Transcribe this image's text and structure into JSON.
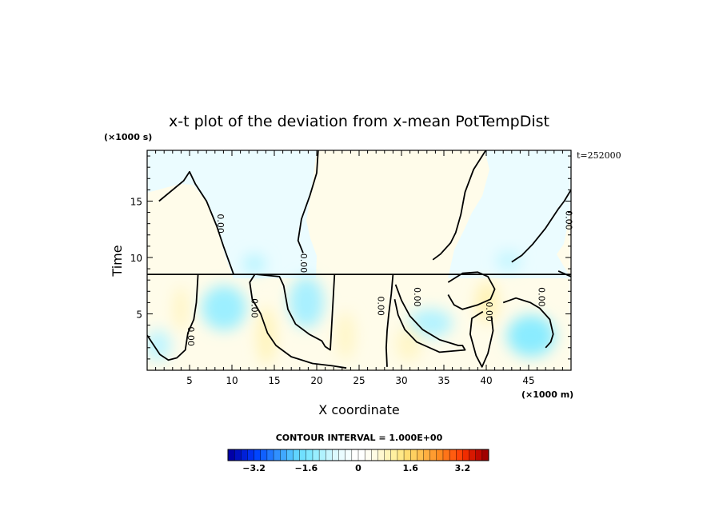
{
  "chart_data": {
    "type": "heatmap",
    "title": "x-t plot of the deviation from x-mean PotTempDist",
    "xlabel": "X coordinate",
    "ylabel": "Time",
    "x_unit": "(×1000 m)",
    "y_unit": "(×1000 s)",
    "time_stamp": "t=252000",
    "xlim": [
      0,
      50
    ],
    "ylim": [
      0,
      19.5
    ],
    "x_ticks": [
      5,
      10,
      15,
      20,
      25,
      30,
      35,
      40,
      45
    ],
    "y_ticks": [
      5,
      10,
      15
    ],
    "contour_interval_text": "CONTOUR INTERVAL = 1.000E+00",
    "contour_label": "0.00",
    "colorbar": {
      "min": -4,
      "max": 4,
      "step": 0.2,
      "tick_values": [
        -3.2,
        -1.6,
        0,
        1.6,
        3.2
      ],
      "tick_labels": [
        "−3.2",
        "−1.6",
        "0",
        "1.6",
        "3.2"
      ],
      "colors_negative": [
        "#0000a8",
        "#0010c0",
        "#0020d8",
        "#0030ee",
        "#0045ff",
        "#1060ff",
        "#2078ff",
        "#3090ff",
        "#40a8ff",
        "#50c0ff",
        "#60d4ff",
        "#70e0ff",
        "#80e8ff",
        "#98eeff",
        "#b0f2ff",
        "#c8f6ff",
        "#dcf9ff",
        "#eafcff",
        "#f4feff",
        "#ffffff"
      ],
      "colors_positive": [
        "#ffffff",
        "#fffdf2",
        "#fffbe4",
        "#fff8d0",
        "#fff4b8",
        "#fff0a0",
        "#ffe888",
        "#ffdc70",
        "#ffd060",
        "#ffc050",
        "#ffae40",
        "#ff9c30",
        "#ff8a20",
        "#ff7418",
        "#ff5c10",
        "#ff4408",
        "#f02c00",
        "#d81800",
        "#c00800",
        "#a00000"
      ]
    },
    "regions": [
      {
        "sign": "positive",
        "level": 0.3
      },
      {
        "sign": "negative",
        "level": -0.3
      },
      {
        "sign": "negative",
        "level": -0.8
      },
      {
        "sign": "positive",
        "level": 0.6
      }
    ],
    "contour_lines": [
      {
        "level": 0,
        "points": [
          [
            1.4,
            15
          ],
          [
            4.3,
            16.8
          ],
          [
            5,
            17.6
          ],
          [
            5.7,
            16.5
          ],
          [
            7,
            15
          ],
          [
            8.2,
            12.8
          ],
          [
            9,
            11
          ],
          [
            10.2,
            8.5
          ]
        ]
      },
      {
        "level": 0,
        "points": [
          [
            20.2,
            19.8
          ],
          [
            20,
            17.5
          ],
          [
            19.2,
            15.5
          ],
          [
            18.2,
            13.4
          ],
          [
            17.8,
            11.5
          ],
          [
            18.4,
            10.4
          ]
        ]
      },
      {
        "level": 0,
        "points": [
          [
            40.2,
            19.8
          ],
          [
            38.5,
            17.8
          ],
          [
            37.5,
            15.8
          ],
          [
            37,
            13.8
          ],
          [
            36.4,
            12.2
          ],
          [
            35.8,
            11.3
          ],
          [
            34.6,
            10.3
          ],
          [
            33.7,
            9.8
          ]
        ]
      },
      {
        "level": 0,
        "points": [
          [
            50,
            16
          ],
          [
            49.2,
            15
          ],
          [
            48.5,
            14.3
          ],
          [
            47,
            12.6
          ],
          [
            45.5,
            11.2
          ],
          [
            44.2,
            10.2
          ],
          [
            43,
            9.6
          ]
        ]
      },
      {
        "level": 0,
        "points": [
          [
            0,
            3.1
          ],
          [
            1.5,
            1.4
          ],
          [
            2.5,
            0.9
          ],
          [
            3.5,
            1.1
          ],
          [
            4.5,
            1.8
          ],
          [
            4.8,
            3.3
          ],
          [
            5.5,
            4.5
          ],
          [
            5.8,
            6
          ],
          [
            6,
            8.5
          ]
        ]
      },
      {
        "level": 0,
        "points": [
          [
            12.7,
            8.5
          ],
          [
            12.1,
            7.8
          ],
          [
            12.4,
            6.3
          ],
          [
            13.4,
            5
          ],
          [
            14.2,
            3.3
          ],
          [
            15.2,
            2.2
          ],
          [
            17,
            1.2
          ],
          [
            19.5,
            0.6
          ],
          [
            21.8,
            0.4
          ],
          [
            23.5,
            0.2
          ]
        ]
      },
      {
        "level": 0,
        "points": [
          [
            12.9,
            8.5
          ],
          [
            15.6,
            8.3
          ],
          [
            16.1,
            7.5
          ],
          [
            16.6,
            5.4
          ],
          [
            17.5,
            4.1
          ],
          [
            19.1,
            3.2
          ],
          [
            20.6,
            2.6
          ],
          [
            21,
            2.1
          ],
          [
            21.6,
            1.8
          ],
          [
            22.1,
            8.5
          ]
        ]
      },
      {
        "level": 0,
        "points": [
          [
            29,
            8.5
          ],
          [
            28.8,
            6.8
          ],
          [
            28.5,
            5
          ],
          [
            28.3,
            3.5
          ],
          [
            28.2,
            2
          ],
          [
            28.3,
            0.3
          ]
        ]
      },
      {
        "level": 0,
        "points": [
          [
            29.3,
            7.6
          ],
          [
            30,
            6.2
          ],
          [
            31,
            4.8
          ],
          [
            32.5,
            3.6
          ],
          [
            34.5,
            2.7
          ],
          [
            36.7,
            2.2
          ],
          [
            37.2,
            2.2
          ],
          [
            37.5,
            1.8
          ],
          [
            34.5,
            1.6
          ],
          [
            31.8,
            2.5
          ],
          [
            30.4,
            3.6
          ],
          [
            29.6,
            4.9
          ],
          [
            29.2,
            6.3
          ]
        ]
      },
      {
        "level": 0,
        "points": [
          [
            35.5,
            7.8
          ],
          [
            37.2,
            8.6
          ],
          [
            39,
            8.7
          ],
          [
            40.2,
            8.3
          ],
          [
            41,
            7.2
          ],
          [
            40.5,
            6.3
          ],
          [
            39,
            5.8
          ],
          [
            37.2,
            5.4
          ],
          [
            36.2,
            5.8
          ],
          [
            35.5,
            6.7
          ]
        ]
      },
      {
        "level": 0,
        "points": [
          [
            39.6,
            5.2
          ],
          [
            38.3,
            4.6
          ],
          [
            38.1,
            3.2
          ],
          [
            38.8,
            1.3
          ],
          [
            39.5,
            0.3
          ],
          [
            40.2,
            1.5
          ],
          [
            40.8,
            3.5
          ],
          [
            40.6,
            4.8
          ]
        ]
      },
      {
        "level": 0,
        "points": [
          [
            42,
            6
          ],
          [
            43.5,
            6.4
          ],
          [
            45.2,
            6
          ],
          [
            46.3,
            5.5
          ],
          [
            47.5,
            4.5
          ],
          [
            47.9,
            3.2
          ],
          [
            47.6,
            2.5
          ],
          [
            47,
            2
          ]
        ]
      },
      {
        "level": 0,
        "points": [
          [
            50,
            8.3
          ],
          [
            48.5,
            8.8
          ]
        ]
      },
      {
        "level": 0,
        "points": [
          [
            0,
            8.5
          ],
          [
            50,
            8.5
          ]
        ]
      }
    ],
    "contour_label_points": [
      [
        8.3,
        13
      ],
      [
        18.1,
        9.5
      ],
      [
        12.3,
        5.5
      ],
      [
        4.8,
        3
      ],
      [
        27.2,
        5.7
      ],
      [
        31.5,
        6.5
      ],
      [
        40,
        5.2
      ],
      [
        46.2,
        6.5
      ],
      [
        49.4,
        13.3
      ]
    ]
  }
}
